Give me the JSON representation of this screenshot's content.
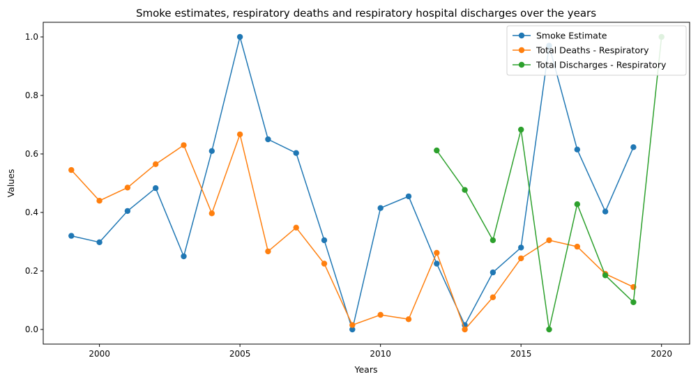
{
  "chart_data": {
    "type": "line",
    "title": "Smoke estimates, respiratory deaths and respiratory hospital discharges over the years",
    "xlabel": "Years",
    "ylabel": "Values",
    "xlim": [
      1998,
      2021
    ],
    "ylim": [
      -0.05,
      1.05
    ],
    "xticks": [
      2000,
      2005,
      2010,
      2015,
      2020
    ],
    "yticks": [
      0.0,
      0.2,
      0.4,
      0.6,
      0.8,
      1.0
    ],
    "xtick_labels": [
      "2000",
      "2005",
      "2010",
      "2015",
      "2020"
    ],
    "ytick_labels": [
      "0.0",
      "0.2",
      "0.4",
      "0.6",
      "0.8",
      "1.0"
    ],
    "grid": false,
    "legend_position": "top-right",
    "series": [
      {
        "name": "Smoke Estimate",
        "color": "#1f77b4",
        "x": [
          1999,
          2000,
          2001,
          2002,
          2003,
          2004,
          2005,
          2006,
          2007,
          2008,
          2009,
          2010,
          2011,
          2012,
          2013,
          2014,
          2015,
          2016,
          2017,
          2018,
          2019
        ],
        "y": [
          0.32,
          0.298,
          0.405,
          0.483,
          0.25,
          0.61,
          1.0,
          0.65,
          0.603,
          0.305,
          0.0,
          0.415,
          0.455,
          0.225,
          0.015,
          0.195,
          0.28,
          0.97,
          0.615,
          0.403,
          0.623
        ]
      },
      {
        "name": "Total Deaths - Respiratory",
        "color": "#ff7f0e",
        "x": [
          1999,
          2000,
          2001,
          2002,
          2003,
          2004,
          2005,
          2006,
          2007,
          2008,
          2009,
          2010,
          2011,
          2012,
          2013,
          2014,
          2015,
          2016,
          2017,
          2018,
          2019
        ],
        "y": [
          0.545,
          0.44,
          0.485,
          0.565,
          0.63,
          0.397,
          0.667,
          0.267,
          0.348,
          0.225,
          0.015,
          0.05,
          0.035,
          0.262,
          0.0,
          0.11,
          0.243,
          0.305,
          0.283,
          0.19,
          0.145
        ]
      },
      {
        "name": "Total Discharges -  Respiratory",
        "color": "#2ca02c",
        "x": [
          2012,
          2013,
          2014,
          2015,
          2016,
          2017,
          2018,
          2019,
          2020
        ],
        "y": [
          0.612,
          0.477,
          0.305,
          0.683,
          0.0,
          0.428,
          0.185,
          0.093,
          1.0
        ]
      }
    ]
  }
}
